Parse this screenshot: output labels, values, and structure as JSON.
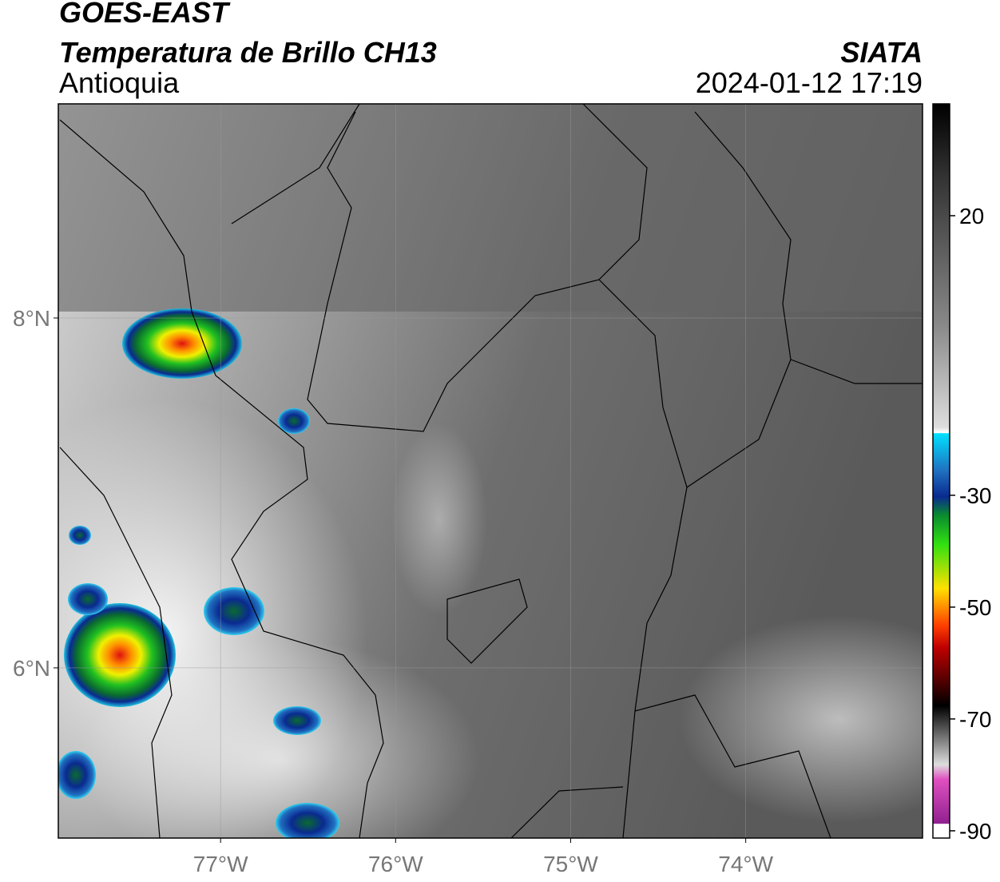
{
  "header": {
    "satellite": "GOES-EAST",
    "title": "Temperatura de Brillo CH13",
    "region": "Antioquia",
    "source": "SIATA",
    "timestamp": "2024-01-12 17:19"
  },
  "map": {
    "xlim": [
      -77.927,
      -72.99
    ],
    "ylim": [
      5.027,
      9.224
    ],
    "xticks": [
      {
        "value": -77,
        "label": "77°W"
      },
      {
        "value": -76,
        "label": "76°W"
      },
      {
        "value": -75,
        "label": "75°W"
      },
      {
        "value": -74,
        "label": "74°W"
      }
    ],
    "yticks": [
      {
        "value": 8,
        "label": "8°N"
      },
      {
        "value": 6,
        "label": "6°N"
      }
    ]
  },
  "colorbar": {
    "lim": [
      -91.3,
      40
    ],
    "ticks": [
      20,
      -30,
      -50,
      -70,
      -90
    ]
  }
}
